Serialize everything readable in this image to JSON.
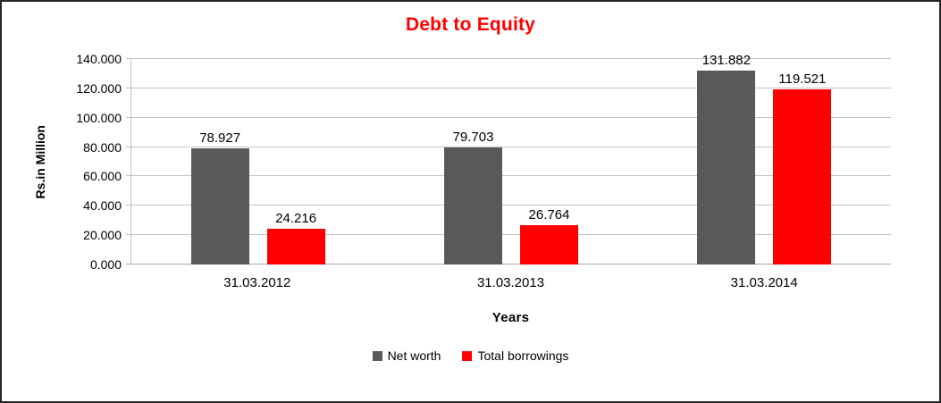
{
  "chart_data": {
    "type": "bar",
    "title": "Debt to Equity",
    "title_color": "#FF0000",
    "xlabel": "Years",
    "ylabel": "Rs.in Million",
    "categories": [
      "31.03.2012",
      "31.03.2013",
      "31.03.2014"
    ],
    "series": [
      {
        "name": "Net worth",
        "color": "#595959",
        "values": [
          78.927,
          79.703,
          131.882
        ]
      },
      {
        "name": "Total borrowings",
        "color": "#FF0000",
        "values": [
          24.216,
          26.764,
          119.521
        ]
      }
    ],
    "data_labels": true,
    "value_label_decimals": 3,
    "ylim": [
      0,
      140
    ],
    "ytick_step": 20,
    "ytick_decimals": 3,
    "grid": true,
    "legend_position": "bottom"
  }
}
